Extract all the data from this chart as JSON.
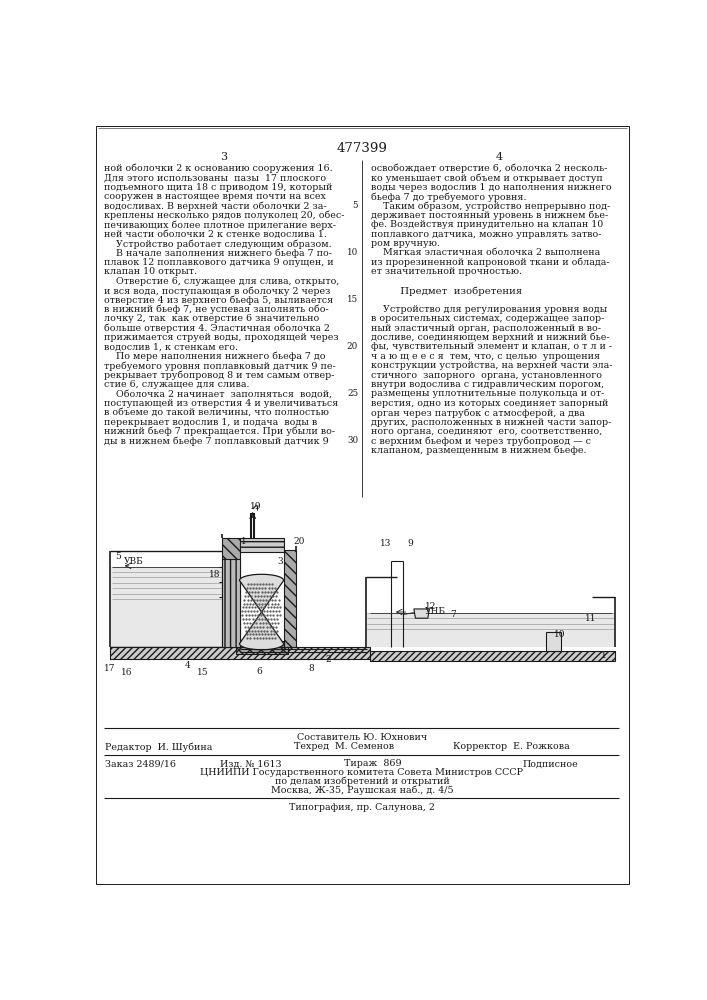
{
  "patent_number": "477399",
  "page_col_left": "3",
  "page_col_right": "4",
  "background_color": "#ffffff",
  "text_color": "#1a1a1a",
  "font_size_body": 6.8,
  "font_size_header": 8.0,
  "font_size_patent": 9.5,
  "text_left": [
    "ной оболочки 2 к основанию сооружения 16.",
    "Для этого использованы  пазы  17 плоского",
    "подъемного щита 18 с приводом 19, который",
    "сооружен в настоящее время почти на всех",
    "водосливах. В верхней части оболочки 2 за-",
    "креплены несколько рядов полуколец 20, обес-",
    "печивающих более плотное прилегание верх-",
    "ней части оболочки 2 к стенке водослива 1.",
    "    Устройство работает следующим образом.",
    "    В начале заполнения нижнего бьефа 7 по-",
    "плавок 12 поплавкового датчика 9 опущен, и",
    "клапан 10 открыт.",
    "    Отверстие 6, служащее для слива, открыто,",
    "и вся вода, поступающая в оболочку 2 через",
    "отверстие 4 из верхнего бьефа 5, выливается",
    "в нижний бьеф 7, не успевая заполнять обо-",
    "лочку 2, так  как отверстие 6 значительно",
    "больше отверстия 4. Эластичная оболочка 2",
    "прижимается струей воды, проходящей через",
    "водослив 1, к стенкам его.",
    "    По мере наполнения нижнего бьефа 7 до",
    "требуемого уровня поплавковый датчик 9 пе-",
    "рекрывает трубопровод 8 и тем самым отвер-",
    "стие 6, служащее для слива.",
    "    Оболочка 2 начинает  заполняться  водой,",
    "поступающей из отверстия 4 и увеличиваться",
    "в объеме до такой величины, что полностью",
    "перекрывает водослив 1, и подача  воды в",
    "нижний бьеф 7 прекращается. При убыли во-",
    "ды в нижнем бьефе 7 поплавковый датчик 9"
  ],
  "line_numbers_left": {
    "4": 5,
    "9": 10,
    "14": 15,
    "19": 20,
    "24": 25,
    "29": 30
  },
  "text_right": [
    "освобождает отверстие 6, оболочка 2 несколь-",
    "ко уменьшает свой объем и открывает доступ",
    "воды через водослив 1 до наполнения нижнего",
    "бьефа 7 до требуемого уровня.",
    "    Таким образом, устройство непрерывно под-",
    "держивает постоянный уровень в нижнем бье-",
    "фе. Воздействуя принудительно на клапан 10",
    "поплавкого датчика, можно управлять затво-",
    "ром вручную.",
    "    Мягкая эластичная оболочка 2 выполнена",
    "из прорезиненной капроновой ткани и облада-",
    "ет значительной прочностью.",
    "",
    "         Предмет  изобретения",
    "",
    "    Устройство для регулирования уровня воды",
    "в оросительных системах, содержащее запор-",
    "ный эластичный орган, расположенный в во-",
    "досливе, соединяющем верхний и нижний бье-",
    "фы, чувствительный элемент и клапан, о т л и -",
    "ч а ю щ е е с я  тем, что, с целью  упрощения",
    "конструкции устройства, на верхней части эла-",
    "стичного  запорного  органа, установленного",
    "внутри водослива с гидравлическим порогом,",
    "размещены уплотнительные полукольца и от-",
    "верстия, одно из которых соединяет запорный",
    "орган через патрубок с атмосферой, а два",
    "других, расположенных в нижней части запор-",
    "ного органа, соединяют  его, соответственно,",
    "с верхним бьефом и через трубопровод — с",
    "клапаном, размещенным в нижнем бьефе."
  ],
  "composer_line": "Составитель Ю. Юхнович",
  "editor_line": "Редактор  И. Шубина",
  "tech_line": "Техред  М. Семенов",
  "corrector_line": "Корректор  Е. Рожкова",
  "order_line": "Заказ 2489/16",
  "issue_line": "Изд. № 1613",
  "print_run_line": "Тираж  869",
  "subscription_line": "Подписное",
  "org_line1": "ЦНИИПИ Государственного комитета Совета Министров СССР",
  "org_line2": "по делам изобретений и открытий",
  "org_line3": "Москва, Ж-35, Раушская наб., д. 4/5",
  "typography_line": "Типография, пр. Салунова, 2"
}
